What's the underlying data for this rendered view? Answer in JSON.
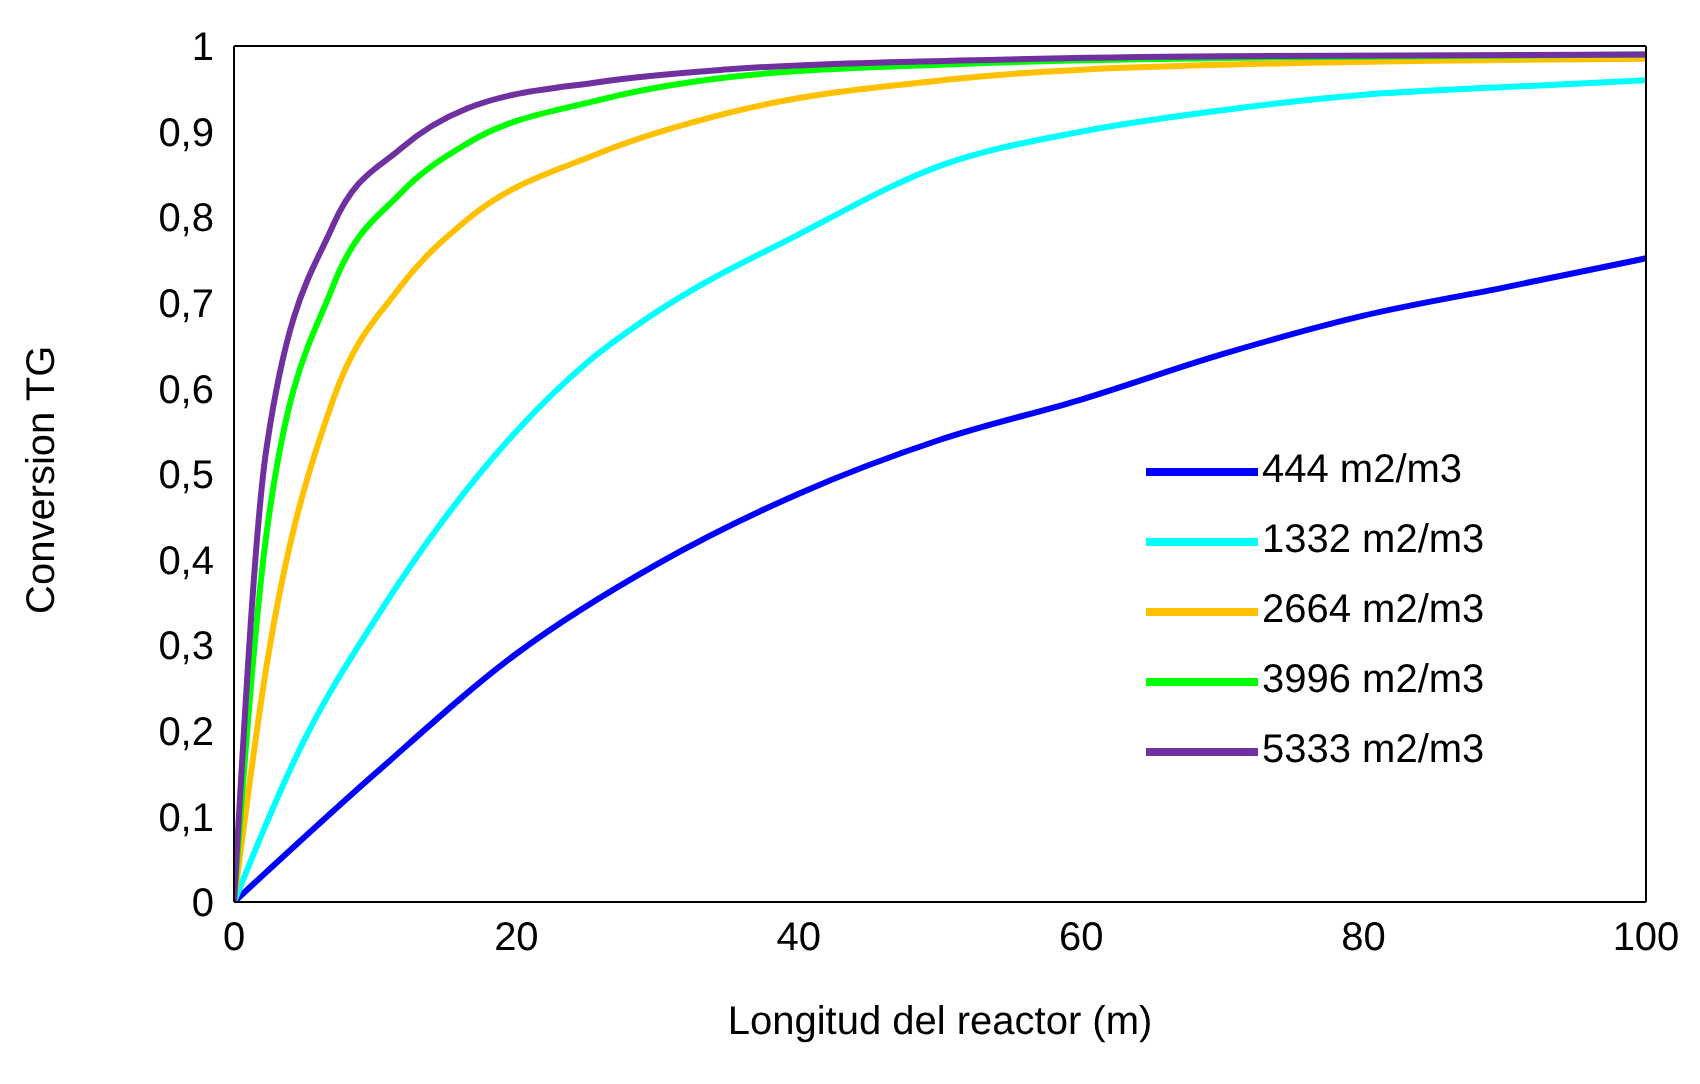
{
  "chart_data": {
    "type": "line",
    "xlabel": "Longitud del reactor (m)",
    "ylabel": "Conversion TG",
    "xlim": [
      0,
      100
    ],
    "xticks": [
      0,
      20,
      40,
      60,
      80,
      100
    ],
    "ylim": [
      0,
      1
    ],
    "yticks": [
      0,
      {
        "value": 0.1,
        "label": "0,1"
      },
      {
        "value": 0.2,
        "label": "0,2"
      },
      {
        "value": 0.3,
        "label": "0,3"
      },
      {
        "value": 0.4,
        "label": "0,4"
      },
      {
        "value": 0.5,
        "label": "0,5"
      },
      {
        "value": 0.6,
        "label": "0,6"
      },
      {
        "value": 0.7,
        "label": "0,7"
      },
      {
        "value": 0.8,
        "label": "0,8"
      },
      {
        "value": 0.9,
        "label": "0,9"
      },
      1
    ],
    "legend": "bottom right",
    "marker": "none",
    "line_style": "solid",
    "series": [
      {
        "name": "444 m2/m3",
        "color": "#0000ff",
        "x": [
          0,
          10,
          20,
          30,
          40,
          50,
          60,
          70,
          80,
          90,
          100
        ],
        "values": [
          0,
          0.15,
          0.29,
          0.395,
          0.477,
          0.54,
          0.587,
          0.64,
          0.685,
          0.718,
          0.752
        ]
      },
      {
        "name": "1332 m2/m3",
        "color": "#00ffff",
        "x": [
          0,
          5,
          10,
          15,
          20,
          25,
          30,
          40,
          50,
          60,
          70,
          80,
          90,
          100
        ],
        "values": [
          0,
          0.19,
          0.33,
          0.45,
          0.55,
          0.63,
          0.69,
          0.78,
          0.86,
          0.9,
          0.925,
          0.943,
          0.952,
          0.96
        ]
      },
      {
        "name": "2664 m2/m3",
        "color": "#ffc000",
        "x": [
          0,
          2.3,
          7,
          11.8,
          16.5,
          25.9,
          35.3,
          51.4,
          70,
          100
        ],
        "values": [
          0,
          0.275,
          0.586,
          0.719,
          0.797,
          0.875,
          0.923,
          0.962,
          0.978,
          0.985
        ]
      },
      {
        "name": "3996 m2/m3",
        "color": "#00ff00",
        "x": [
          0,
          2.3,
          7,
          11.8,
          16.5,
          25.9,
          35.3,
          51.4,
          70,
          100
        ],
        "values": [
          0,
          0.43,
          0.719,
          0.828,
          0.886,
          0.937,
          0.964,
          0.979,
          0.986,
          0.99
        ]
      },
      {
        "name": "5333 m2/m3",
        "color": "#7030a0",
        "x": [
          0,
          2.3,
          7,
          11.8,
          16.5,
          25.9,
          35.3,
          51.4,
          70,
          100
        ],
        "values": [
          0,
          0.53,
          0.79,
          0.88,
          0.927,
          0.958,
          0.973,
          0.983,
          0.988,
          0.99
        ]
      }
    ]
  }
}
